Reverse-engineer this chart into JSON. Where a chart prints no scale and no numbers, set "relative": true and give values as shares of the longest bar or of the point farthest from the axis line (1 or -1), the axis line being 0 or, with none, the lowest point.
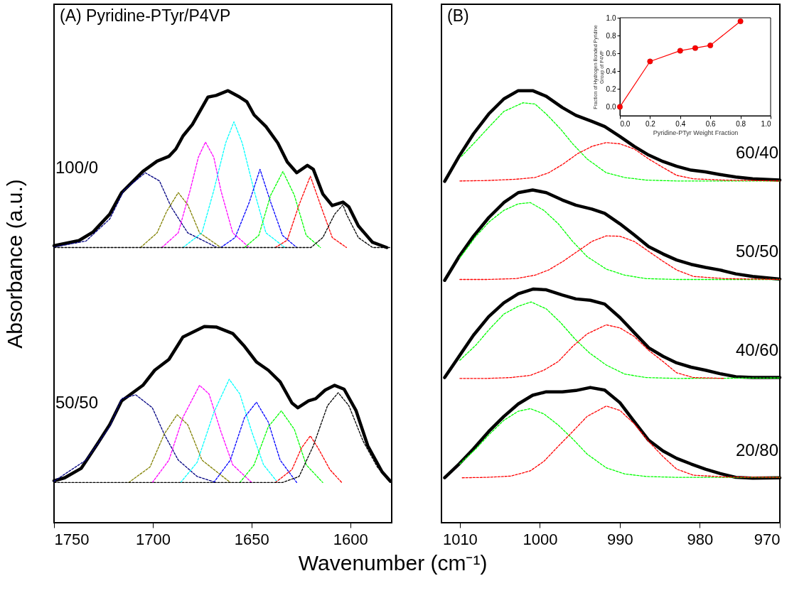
{
  "chart_data": [
    {
      "type": "line",
      "title": "(A) Pyridine-PTyr/P4VP",
      "xlabel": "Wavenumber (cm⁻¹)",
      "ylabel": "Absorbance (a.u.)",
      "relative": true,
      "xlim": [
        1750,
        1579
      ],
      "xticks": [
        1750,
        1700,
        1650,
        1600
      ],
      "series": [
        {
          "name": "100/0",
          "color": "#000000",
          "line_style": "solid",
          "x": [
            1750.0,
            1737.4,
            1730.2,
            1721.8,
            1715.8,
            1705.0,
            1697.8,
            1691.8,
            1688.3,
            1684.7,
            1679.9,
            1672.1,
            1667.9,
            1661.9,
            1655.9,
            1652.3,
            1648.7,
            1642.7,
            1636.7,
            1631.9,
            1627.1,
            1621.7,
            1618.7,
            1613.9,
            1609.1,
            1603.7,
            1600.7,
            1595.9,
            1588.7,
            1581.5
          ],
          "values": [
            0.641,
            0.653,
            0.673,
            0.714,
            0.764,
            0.813,
            0.837,
            0.848,
            0.865,
            0.895,
            0.922,
            0.985,
            0.989,
            1.0,
            0.985,
            0.974,
            0.944,
            0.917,
            0.879,
            0.835,
            0.81,
            0.827,
            0.818,
            0.761,
            0.734,
            0.742,
            0.731,
            0.687,
            0.649,
            0.637
          ]
        },
        {
          "color": "#000080",
          "line_style": "dashed",
          "x": [
            1750.0,
            1733.8,
            1721.8,
            1714.6,
            1703.8,
            1696.6,
            1690.7,
            1682.3,
            1667.9
          ],
          "values": [
            0.638,
            0.652,
            0.703,
            0.769,
            0.81,
            0.791,
            0.731,
            0.671,
            0.638
          ]
        },
        {
          "color": "#808000",
          "line_style": "dashed",
          "x": [
            1706.2,
            1697.8,
            1693.0,
            1687.1,
            1682.3,
            1676.3,
            1665.5
          ],
          "values": [
            0.637,
            0.671,
            0.72,
            0.764,
            0.736,
            0.671,
            0.637
          ]
        },
        {
          "color": "#ff00ff",
          "line_style": "dashed",
          "x": [
            1695.4,
            1687.1,
            1681.1,
            1676.9,
            1673.3,
            1669.1,
            1665.5,
            1659.5,
            1651.1
          ],
          "values": [
            0.637,
            0.671,
            0.769,
            0.846,
            0.881,
            0.846,
            0.769,
            0.671,
            0.637
          ]
        },
        {
          "color": "#00ffff",
          "line_style": "dashed",
          "x": [
            1684.7,
            1675.1,
            1669.1,
            1663.1,
            1658.9,
            1654.7,
            1648.7,
            1642.7,
            1633.1
          ],
          "values": [
            0.637,
            0.671,
            0.769,
            0.879,
            0.928,
            0.879,
            0.769,
            0.671,
            0.637
          ]
        },
        {
          "color": "#0000ff",
          "line_style": "dashed",
          "x": [
            1665.5,
            1658.3,
            1651.1,
            1645.7,
            1640.3,
            1634.3,
            1627.1
          ],
          "values": [
            0.637,
            0.66,
            0.742,
            0.818,
            0.742,
            0.665,
            0.637
          ]
        },
        {
          "color": "#00ff00",
          "line_style": "dashed",
          "x": [
            1653.5,
            1646.3,
            1640.3,
            1634.1,
            1628.3,
            1622.3,
            1615.1
          ],
          "values": [
            0.637,
            0.665,
            0.758,
            0.813,
            0.758,
            0.665,
            0.637
          ]
        },
        {
          "color": "#ff0000",
          "line_style": "dashed",
          "x": [
            1637.9,
            1631.9,
            1625.9,
            1620.2,
            1615.1,
            1609.1,
            1601.9
          ],
          "values": [
            0.637,
            0.654,
            0.736,
            0.802,
            0.736,
            0.66,
            0.637
          ]
        },
        {
          "color": "#000000",
          "line_style": "dashed",
          "x": [
            1750,
            1619.9,
            1613.9,
            1607.9,
            1603.7,
            1601.9,
            1595.9,
            1588.7,
            1580
          ],
          "values": [
            0.637,
            0.637,
            0.66,
            0.714,
            0.736,
            0.714,
            0.66,
            0.637,
            0.637
          ]
        },
        {
          "name": "50/50",
          "color": "#000000",
          "line_style": "solid",
          "x": [
            1750.0,
            1744.6,
            1736.2,
            1732.6,
            1727.8,
            1721.8,
            1715.8,
            1705.0,
            1699.0,
            1691.8,
            1684.7,
            1673.9,
            1667.9,
            1659.5,
            1653.5,
            1647.5,
            1641.5,
            1635.5,
            1629.5,
            1626.5,
            1621.1,
            1617.5,
            1612.7,
            1607.9,
            1603.1,
            1597.1,
            1591.1,
            1583.9,
            1579.7
          ],
          "values": [
            0.097,
            0.104,
            0.126,
            0.151,
            0.184,
            0.227,
            0.282,
            0.318,
            0.353,
            0.378,
            0.43,
            0.454,
            0.453,
            0.438,
            0.408,
            0.372,
            0.353,
            0.326,
            0.277,
            0.266,
            0.282,
            0.287,
            0.307,
            0.318,
            0.309,
            0.26,
            0.178,
            0.118,
            0.096
          ]
        },
        {
          "color": "#000080",
          "line_style": "dashed",
          "x": [
            1750.0,
            1733.8,
            1721.8,
            1715.8,
            1708.6,
            1700.2,
            1694.2,
            1687.1,
            1677.5,
            1667.9
          ],
          "values": [
            0.096,
            0.145,
            0.222,
            0.287,
            0.296,
            0.266,
            0.205,
            0.145,
            0.107,
            0.093
          ]
        },
        {
          "color": "#808000",
          "line_style": "dashed",
          "x": [
            1712.2,
            1701.4,
            1694.2,
            1687.7,
            1682.3,
            1675.1,
            1660.7
          ],
          "values": [
            0.093,
            0.129,
            0.205,
            0.25,
            0.227,
            0.145,
            0.093
          ]
        },
        {
          "color": "#ff00ff",
          "line_style": "dashed",
          "x": [
            1700.2,
            1691.8,
            1684.7,
            1676.3,
            1671.5,
            1665.5,
            1659.5,
            1649.9
          ],
          "values": [
            0.093,
            0.145,
            0.244,
            0.318,
            0.298,
            0.211,
            0.134,
            0.093
          ]
        },
        {
          "color": "#00ffff",
          "line_style": "dashed",
          "x": [
            1685.9,
            1677.5,
            1669.1,
            1661.3,
            1655.9,
            1649.9,
            1643.9,
            1636.7
          ],
          "values": [
            0.093,
            0.14,
            0.255,
            0.332,
            0.298,
            0.211,
            0.134,
            0.093
          ]
        },
        {
          "color": "#0000ff",
          "line_style": "dashed",
          "x": [
            1669.1,
            1660.7,
            1653.5,
            1647.5,
            1641.5,
            1635.5,
            1627.1
          ],
          "values": [
            0.093,
            0.145,
            0.244,
            0.279,
            0.233,
            0.145,
            0.093
          ]
        },
        {
          "color": "#00ff00",
          "line_style": "dashed",
          "x": [
            1655.9,
            1648.7,
            1641.5,
            1634.9,
            1628.3,
            1622.3,
            1613.9
          ],
          "values": [
            0.093,
            0.134,
            0.222,
            0.259,
            0.216,
            0.134,
            0.093
          ]
        },
        {
          "color": "#ff0000",
          "line_style": "dashed",
          "x": [
            1637.9,
            1629.5,
            1624.7,
            1620.2,
            1616.3,
            1610.3,
            1604.3
          ],
          "values": [
            0.093,
            0.123,
            0.173,
            0.201,
            0.173,
            0.123,
            0.093
          ]
        },
        {
          "color": "#000000",
          "line_style": "dashed",
          "x": [
            1750,
            1634.3,
            1625.9,
            1618.7,
            1611.5,
            1606.1,
            1600.7,
            1593.5,
            1586.3,
            1579.7
          ],
          "values": [
            0.093,
            0.093,
            0.107,
            0.178,
            0.271,
            0.301,
            0.271,
            0.189,
            0.129,
            0.093
          ]
        }
      ]
    },
    {
      "type": "line",
      "title": "(B)",
      "relative": true,
      "xlim": [
        1012.3,
        970
      ],
      "xticks": [
        1010,
        1000,
        990,
        980,
        970
      ],
      "series": [
        {
          "name": "60/40",
          "color": "#000000",
          "line_style": "solid",
          "x": [
            1011.9,
            1010.1,
            1008.3,
            1006.4,
            1004.5,
            1002.7,
            1000.9,
            999.2,
            997.2,
            995.5,
            993.5,
            991.9,
            990.0,
            988.2,
            986.4,
            984.6,
            982.9,
            981.1,
            979.3,
            977.5,
            975.5,
            973.4,
            970.0
          ],
          "values": [
            0.79,
            0.848,
            0.9,
            0.946,
            0.981,
            1.0,
            1.0,
            0.987,
            0.961,
            0.943,
            0.929,
            0.917,
            0.894,
            0.871,
            0.851,
            0.836,
            0.825,
            0.816,
            0.812,
            0.806,
            0.8,
            0.796,
            0.793
          ]
        },
        {
          "color": "#00ff00",
          "line_style": "dashed",
          "x": [
            1009.8,
            1008.0,
            1006.3,
            1004.5,
            1002.1,
            1000.6,
            999.2,
            997.4,
            995.9,
            994.1,
            991.7,
            989.4,
            986.7,
            982.9,
            970.0
          ],
          "values": [
            0.848,
            0.883,
            0.917,
            0.952,
            0.972,
            0.969,
            0.946,
            0.911,
            0.877,
            0.842,
            0.81,
            0.799,
            0.793,
            0.791,
            0.791
          ]
        },
        {
          "color": "#ff0000",
          "line_style": "dashed",
          "x": [
            1010.0,
            1006.6,
            1003.0,
            1000.6,
            998.9,
            997.1,
            995.3,
            993.5,
            991.7,
            990.0,
            988.2,
            986.4,
            984.6,
            982.9,
            980.8,
            976.9,
            970.0
          ],
          "values": [
            0.791,
            0.792,
            0.795,
            0.799,
            0.81,
            0.83,
            0.854,
            0.871,
            0.88,
            0.877,
            0.865,
            0.842,
            0.822,
            0.804,
            0.796,
            0.793,
            0.791
          ]
        },
        {
          "name": "50/50",
          "color": "#000000",
          "line_style": "solid",
          "x": [
            1011.9,
            1010.1,
            1008.3,
            1006.4,
            1004.5,
            1002.7,
            1000.9,
            999.2,
            997.2,
            995.5,
            993.5,
            991.9,
            990.0,
            988.2,
            986.4,
            984.6,
            982.9,
            981.1,
            979.3,
            977.5,
            975.5,
            973.4,
            970.0
          ],
          "values": [
            0.561,
            0.616,
            0.663,
            0.706,
            0.741,
            0.764,
            0.77,
            0.764,
            0.747,
            0.735,
            0.726,
            0.716,
            0.692,
            0.666,
            0.639,
            0.622,
            0.608,
            0.598,
            0.591,
            0.585,
            0.576,
            0.57,
            0.564
          ]
        },
        {
          "color": "#00ff00",
          "line_style": "dashed",
          "x": [
            1010.0,
            1008.0,
            1006.3,
            1004.5,
            1002.7,
            1001.2,
            999.5,
            997.7,
            995.9,
            994.1,
            991.7,
            989.4,
            986.7,
            982.9,
            970.0
          ],
          "values": [
            0.613,
            0.663,
            0.697,
            0.723,
            0.738,
            0.741,
            0.723,
            0.692,
            0.651,
            0.616,
            0.587,
            0.573,
            0.565,
            0.563,
            0.563
          ]
        },
        {
          "color": "#ff0000",
          "line_style": "dashed",
          "x": [
            1010.0,
            1006.6,
            1003.0,
            1000.6,
            998.9,
            997.1,
            995.3,
            993.5,
            991.7,
            990.0,
            988.2,
            986.4,
            984.6,
            982.9,
            980.8,
            976.9,
            970.0
          ],
          "values": [
            0.563,
            0.563,
            0.565,
            0.573,
            0.585,
            0.605,
            0.628,
            0.651,
            0.664,
            0.663,
            0.651,
            0.628,
            0.605,
            0.585,
            0.57,
            0.565,
            0.563
          ]
        },
        {
          "name": "40/60",
          "color": "#000000",
          "line_style": "solid",
          "x": [
            1011.9,
            1010.1,
            1008.3,
            1006.4,
            1004.5,
            1002.7,
            1000.8,
            999.2,
            997.2,
            995.5,
            993.7,
            991.9,
            990.0,
            988.2,
            986.4,
            984.6,
            982.9,
            981.1,
            979.3,
            977.5,
            975.5,
            973.4,
            970.0
          ],
          "values": [
            0.336,
            0.385,
            0.434,
            0.477,
            0.509,
            0.53,
            0.541,
            0.539,
            0.527,
            0.518,
            0.515,
            0.506,
            0.475,
            0.44,
            0.405,
            0.385,
            0.37,
            0.36,
            0.353,
            0.345,
            0.338,
            0.336,
            0.336
          ]
        },
        {
          "color": "#00ff00",
          "line_style": "dashed",
          "x": [
            1010.0,
            1008.0,
            1006.3,
            1004.5,
            1002.7,
            1001.1,
            999.2,
            997.4,
            995.6,
            993.8,
            991.7,
            989.4,
            986.7,
            982.9,
            970.0
          ],
          "values": [
            0.376,
            0.411,
            0.448,
            0.483,
            0.501,
            0.511,
            0.495,
            0.463,
            0.425,
            0.393,
            0.365,
            0.344,
            0.336,
            0.334,
            0.335
          ]
        },
        {
          "color": "#ff0000",
          "line_style": "dashed",
          "x": [
            1010.0,
            1006.6,
            1003.6,
            1001.2,
            999.5,
            997.7,
            995.9,
            994.1,
            991.7,
            990.0,
            988.2,
            986.4,
            984.6,
            982.9,
            980.8,
            976.9
          ],
          "values": [
            0.334,
            0.334,
            0.336,
            0.341,
            0.353,
            0.373,
            0.408,
            0.437,
            0.458,
            0.451,
            0.431,
            0.399,
            0.373,
            0.347,
            0.336,
            0.334
          ]
        },
        {
          "name": "20/80",
          "color": "#000000",
          "line_style": "solid",
          "x": [
            1011.9,
            1010.1,
            1008.3,
            1006.4,
            1004.5,
            1002.7,
            1000.9,
            999.2,
            997.2,
            995.5,
            993.7,
            991.9,
            990.0,
            988.2,
            986.4,
            984.6,
            982.9,
            981.1,
            979.3,
            977.5,
            975.5,
            973.4,
            970.0
          ],
          "values": [
            0.104,
            0.136,
            0.171,
            0.211,
            0.246,
            0.275,
            0.295,
            0.303,
            0.303,
            0.306,
            0.313,
            0.307,
            0.278,
            0.234,
            0.191,
            0.166,
            0.149,
            0.136,
            0.124,
            0.114,
            0.105,
            0.103,
            0.104
          ]
        },
        {
          "color": "#00ff00",
          "line_style": "dashed",
          "x": [
            1010.0,
            1008.0,
            1006.3,
            1004.5,
            1002.7,
            1001.2,
            999.5,
            997.7,
            995.9,
            994.1,
            991.7,
            989.4,
            986.7,
            982.9,
            970.0
          ],
          "values": [
            0.136,
            0.171,
            0.205,
            0.237,
            0.258,
            0.264,
            0.252,
            0.226,
            0.194,
            0.159,
            0.127,
            0.113,
            0.107,
            0.105,
            0.105
          ]
        },
        {
          "color": "#ff0000",
          "line_style": "dashed",
          "x": [
            1009.7,
            1006.6,
            1003.6,
            1001.2,
            999.5,
            997.7,
            995.9,
            994.1,
            991.7,
            990.0,
            988.2,
            986.4,
            984.6,
            982.9,
            980.8,
            976.9,
            970.0
          ],
          "values": [
            0.104,
            0.105,
            0.108,
            0.12,
            0.142,
            0.177,
            0.211,
            0.246,
            0.27,
            0.26,
            0.229,
            0.188,
            0.153,
            0.124,
            0.11,
            0.106,
            0.105
          ]
        }
      ]
    },
    {
      "type": "line",
      "marker": "circle",
      "xlabel": "Pyridine-PTyr Weight Fraction",
      "ylabel": "Fraction of Hydrogen Bonded Pyridine Group of P4VP",
      "xlim": [
        0,
        1
      ],
      "ylim": [
        -0.1,
        1.0
      ],
      "xticks": [
        {
          "value": 0,
          "label": "0.0"
        },
        {
          "value": 0.2,
          "label": "0.2"
        },
        {
          "value": 0.4,
          "label": "0.4"
        },
        {
          "value": 0.6,
          "label": "0.6"
        },
        {
          "value": 0.8,
          "label": "0.8"
        },
        {
          "value": 1,
          "label": "1.0"
        }
      ],
      "yticks": [
        {
          "value": 0,
          "label": "0.0"
        },
        {
          "value": 0.2,
          "label": "0.2"
        },
        {
          "value": 0.4,
          "label": "0.4"
        },
        {
          "value": 0.6,
          "label": "0.6"
        },
        {
          "value": 0.8,
          "label": "0.8"
        },
        {
          "value": 1,
          "label": "1.0"
        }
      ],
      "series": [
        {
          "color": "#ff0000",
          "x": [
            0,
            0.2,
            0.4,
            0.5,
            0.6,
            0.8
          ],
          "values": [
            0,
            0.51,
            0.63,
            0.66,
            0.69,
            0.96
          ]
        }
      ]
    }
  ]
}
